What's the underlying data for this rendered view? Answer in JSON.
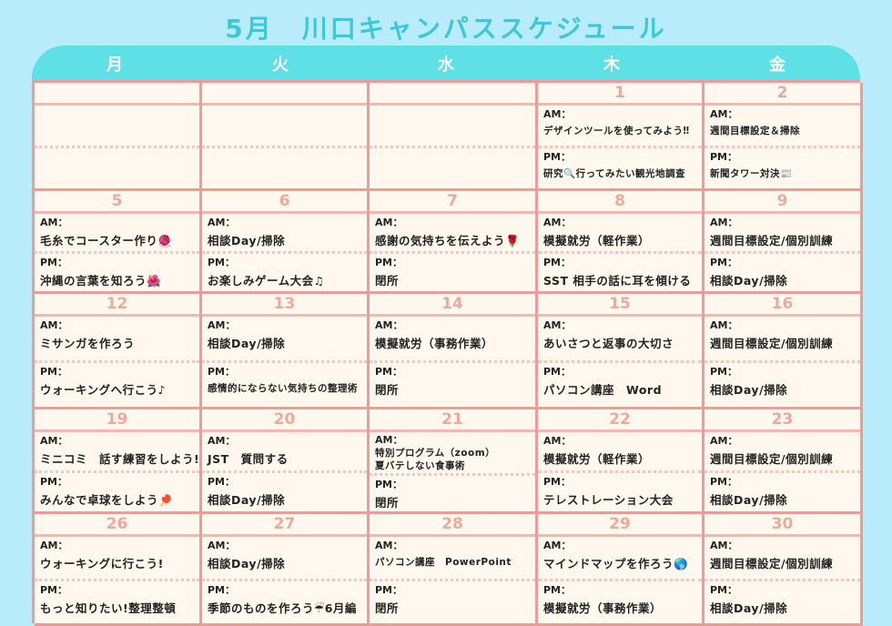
{
  "title": "5月　川口キャンパススケジュール",
  "weekdays": [
    "月",
    "火",
    "水",
    "木",
    "金"
  ],
  "am_label": "AM：",
  "pm_label": "PM：",
  "weeks": [
    [
      {
        "date": "",
        "am": "",
        "pm": ""
      },
      {
        "date": "",
        "am": "",
        "pm": ""
      },
      {
        "date": "",
        "am": "",
        "pm": ""
      },
      {
        "date": "1",
        "am": "デザインツールを使ってみよう‼",
        "pm": "研究🔍行ってみたい観光地調査"
      },
      {
        "date": "2",
        "am": "週間目標設定＆掃除",
        "pm": "新聞タワー対決📰"
      }
    ],
    [
      {
        "date": "5",
        "am": "毛糸でコースター作り🧶",
        "pm": "沖縄の言葉を知ろう🌺"
      },
      {
        "date": "6",
        "am": "相談Day/掃除",
        "pm": "お楽しみゲーム大会♫"
      },
      {
        "date": "7",
        "am": "感謝の気持ちを伝えよう🌹",
        "pm": "閉所"
      },
      {
        "date": "8",
        "am": "模擬就労（軽作業）",
        "pm": "SST 相手の話に耳を傾ける"
      },
      {
        "date": "9",
        "am": "週間目標設定/個別訓練",
        "pm": "相談Day/掃除"
      }
    ],
    [
      {
        "date": "12",
        "am": "ミサンガを作ろう",
        "pm": "ウォーキングへ行こう♪"
      },
      {
        "date": "13",
        "am": "相談Day/掃除",
        "pm": "感情的にならない気持ちの整理術"
      },
      {
        "date": "14",
        "am": "模擬就労（事務作業）",
        "pm": "閉所"
      },
      {
        "date": "15",
        "am": "あいさつと返事の大切さ",
        "pm": "パソコン講座　Word"
      },
      {
        "date": "16",
        "am": "週間目標設定/個別訓練",
        "pm": "相談Day/掃除"
      }
    ],
    [
      {
        "date": "19",
        "am": "ミニコミ　話す練習をしよう!",
        "pm": "みんなで卓球をしよう🏓"
      },
      {
        "date": "20",
        "am": "JST　質問する",
        "pm": "相談Day/掃除"
      },
      {
        "date": "21",
        "am": "特別プログラム（zoom）",
        "am2": "夏バテしない食事術",
        "pm": "閉所"
      },
      {
        "date": "22",
        "am": "模擬就労（軽作業）",
        "pm": "テレストレーション大会"
      },
      {
        "date": "23",
        "am": "週間目標設定/個別訓練",
        "pm": "相談Day/掃除"
      }
    ],
    [
      {
        "date": "26",
        "am": "ウォーキングに行こう!",
        "pm": "もっと知りたい!整理整頓"
      },
      {
        "date": "27",
        "am": "相談Day/掃除",
        "pm": "季節のものを作ろう☔6月編"
      },
      {
        "date": "28",
        "am": "パソコン講座　PowerPoint",
        "pm": "閉所"
      },
      {
        "date": "29",
        "am": "マインドマップを作ろう🌎",
        "pm": "模擬就労（事務作業）"
      },
      {
        "date": "30",
        "am": "週間目標設定/個別訓練",
        "pm": "相談Day/掃除"
      }
    ]
  ]
}
